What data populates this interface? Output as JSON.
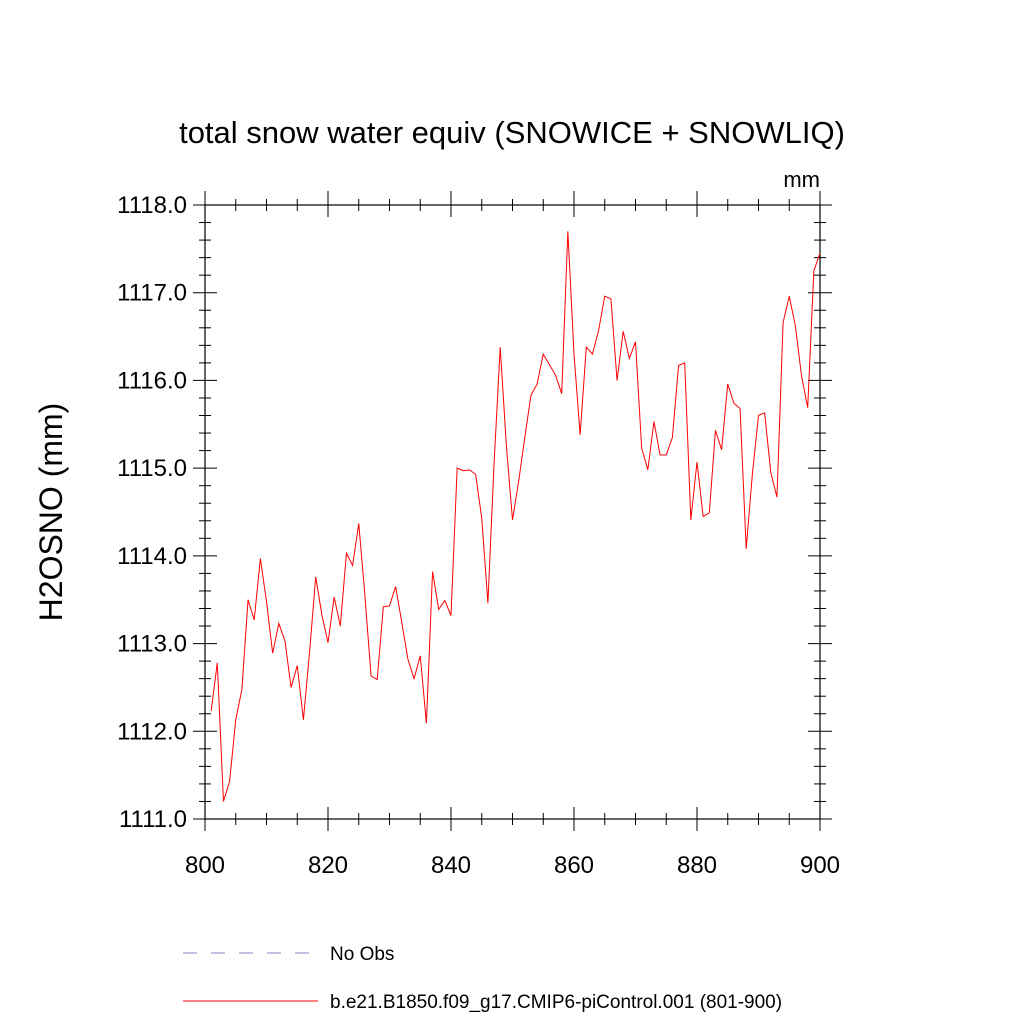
{
  "chart_data": {
    "type": "line",
    "title": "total snow water equiv (SNOWICE + SNOWLIQ)",
    "units_label": "mm",
    "ylabel": "H2OSNO  (mm)",
    "xlabel": "",
    "xlim": [
      800,
      900
    ],
    "ylim": [
      1111.0,
      1118.0
    ],
    "xticks": [
      800,
      820,
      840,
      860,
      880,
      900
    ],
    "xtick_labels": [
      "800",
      "820",
      "840",
      "860",
      "880",
      "900"
    ],
    "yticks": [
      1111.0,
      1112.0,
      1113.0,
      1114.0,
      1115.0,
      1116.0,
      1117.0,
      1118.0
    ],
    "ytick_labels": [
      "1111.0",
      "1112.0",
      "1113.0",
      "1114.0",
      "1115.0",
      "1116.0",
      "1117.0",
      "1118.0"
    ],
    "grid": false,
    "legend_position": "bottom",
    "series": [
      {
        "name": "b.e21.B1850.f09_g17.CMIP6-piControl.001 (801-900)",
        "color": "#ff0000",
        "style": "solid",
        "x": [
          801,
          802,
          803,
          804,
          805,
          806,
          807,
          808,
          809,
          810,
          811,
          812,
          813,
          814,
          815,
          816,
          817,
          818,
          819,
          820,
          821,
          822,
          823,
          824,
          825,
          826,
          827,
          828,
          829,
          830,
          831,
          832,
          833,
          834,
          835,
          836,
          837,
          838,
          839,
          840,
          841,
          842,
          843,
          844,
          845,
          846,
          847,
          848,
          849,
          850,
          851,
          852,
          853,
          854,
          855,
          856,
          857,
          858,
          859,
          860,
          861,
          862,
          863,
          864,
          865,
          866,
          867,
          868,
          869,
          870,
          871,
          872,
          873,
          874,
          875,
          876,
          877,
          878,
          879,
          880,
          881,
          882,
          883,
          884,
          885,
          886,
          887,
          888,
          889,
          890,
          891,
          892,
          893,
          894,
          895,
          896,
          897,
          898,
          899,
          900
        ],
        "values": [
          1112.23,
          1112.78,
          1111.2,
          1111.43,
          1112.13,
          1112.48,
          1113.5,
          1113.27,
          1113.97,
          1113.48,
          1112.89,
          1113.23,
          1113.03,
          1112.5,
          1112.75,
          1112.13,
          1112.9,
          1113.76,
          1113.33,
          1113.01,
          1113.53,
          1113.2,
          1114.03,
          1113.89,
          1114.37,
          1113.55,
          1112.63,
          1112.59,
          1113.42,
          1113.43,
          1113.65,
          1113.24,
          1112.82,
          1112.6,
          1112.86,
          1112.09,
          1113.82,
          1113.39,
          1113.49,
          1113.32,
          1115.0,
          1114.97,
          1114.98,
          1114.93,
          1114.43,
          1113.46,
          1115.05,
          1116.38,
          1115.26,
          1114.41,
          1114.85,
          1115.35,
          1115.83,
          1115.96,
          1116.3,
          1116.18,
          1116.06,
          1115.85,
          1117.7,
          1116.3,
          1115.38,
          1116.38,
          1116.3,
          1116.57,
          1116.96,
          1116.93,
          1116.0,
          1116.56,
          1116.25,
          1116.44,
          1115.23,
          1114.98,
          1115.53,
          1115.15,
          1115.15,
          1115.35,
          1116.17,
          1116.2,
          1114.41,
          1115.07,
          1114.45,
          1114.49,
          1115.43,
          1115.21,
          1115.96,
          1115.74,
          1115.68,
          1114.08,
          1114.93,
          1115.6,
          1115.63,
          1114.95,
          1114.67,
          1116.66,
          1116.96,
          1116.62,
          1116.05,
          1115.69,
          1117.25,
          1117.45
        ]
      },
      {
        "name": "No Obs",
        "color": "#8a82c0",
        "style": "dashed",
        "x": [],
        "values": []
      }
    ]
  }
}
